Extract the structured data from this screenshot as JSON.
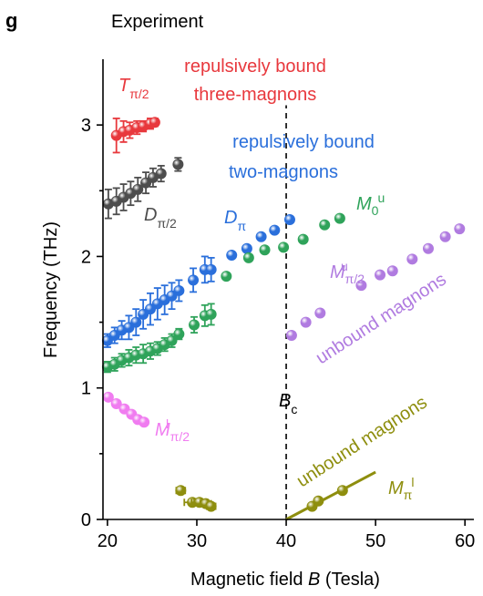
{
  "panel": {
    "letter": "g",
    "title": "Experiment"
  },
  "chart_data": {
    "type": "scatter",
    "xlabel": "Magnetic field B (Tesla)",
    "ylabel": "Frequency (THz)",
    "xlim": [
      19.5,
      61
    ],
    "ylim": [
      0,
      3.5
    ],
    "xticks": [
      20,
      30,
      40,
      50,
      60
    ],
    "yticks": [
      0,
      1,
      2,
      3
    ],
    "grid": false,
    "colors": {
      "T": "#e8383d",
      "D_pi2": "#4d4d4d",
      "D_pi": "#2a6fdb",
      "M0u": "#2fa35a",
      "Mpi2u": "#b07be0",
      "Mpi2l": "#f07cf0",
      "Mpil": "#8e8e0e",
      "annotation_T": "#e8383d",
      "annotation_D": "#2a6fdb"
    },
    "series": [
      {
        "key": "T",
        "color": "#e8383d",
        "x": [
          21.0,
          21.8,
          22.5,
          23.3,
          24.0,
          24.8,
          25.3
        ],
        "y": [
          2.92,
          2.95,
          2.96,
          2.98,
          2.99,
          3.01,
          3.02
        ],
        "err": [
          0.13,
          0.08,
          0.06,
          0.05,
          0.04,
          0.04,
          0.03
        ]
      },
      {
        "key": "D_pi2",
        "color": "#4d4d4d",
        "x": [
          20.1,
          21.0,
          21.8,
          22.6,
          23.4,
          24.3,
          25.1,
          26.0,
          27.9
        ],
        "y": [
          2.4,
          2.42,
          2.45,
          2.48,
          2.51,
          2.56,
          2.6,
          2.63,
          2.7
        ],
        "err": [
          0.11,
          0.1,
          0.1,
          0.09,
          0.09,
          0.08,
          0.07,
          0.06,
          0.05
        ]
      },
      {
        "key": "D_pi",
        "color": "#2a6fdb",
        "x": [
          20.0,
          20.8,
          21.6,
          22.4,
          23.2,
          24.0,
          24.8,
          25.6,
          26.4,
          27.2,
          28.0,
          29.6,
          30.9,
          31.6,
          33.9,
          35.6,
          37.2,
          38.7,
          40.4
        ],
        "y": [
          1.36,
          1.4,
          1.44,
          1.46,
          1.5,
          1.56,
          1.6,
          1.64,
          1.67,
          1.7,
          1.74,
          1.82,
          1.9,
          1.9,
          2.01,
          2.06,
          2.15,
          2.2,
          2.28
        ],
        "err": [
          0.05,
          0.06,
          0.07,
          0.09,
          0.1,
          0.11,
          0.12,
          0.12,
          0.11,
          0.1,
          0.08,
          0.09,
          0.1,
          0.09,
          0,
          0,
          0,
          0,
          0
        ]
      },
      {
        "key": "M0u",
        "color": "#2fa35a",
        "x": [
          20.0,
          20.8,
          21.6,
          22.4,
          23.2,
          24.0,
          24.8,
          25.6,
          26.4,
          27.2,
          28.0,
          29.7,
          30.9,
          31.6,
          33.3,
          35.8,
          37.6,
          39.7,
          41.9,
          44.3,
          46.0
        ],
        "y": [
          1.16,
          1.18,
          1.21,
          1.23,
          1.25,
          1.26,
          1.28,
          1.3,
          1.33,
          1.36,
          1.41,
          1.48,
          1.55,
          1.56,
          1.85,
          1.99,
          2.05,
          2.07,
          2.13,
          2.24,
          2.29
        ],
        "err": [
          0.04,
          0.05,
          0.05,
          0.06,
          0.06,
          0.07,
          0.06,
          0.05,
          0.05,
          0.05,
          0.04,
          0.06,
          0.08,
          0.08,
          0,
          0,
          0,
          0,
          0,
          0,
          0
        ]
      },
      {
        "key": "Mpi2u",
        "color": "#b07be0",
        "x": [
          40.6,
          42.2,
          43.8,
          48.4,
          50.5,
          51.9,
          54.1,
          55.9,
          57.8,
          59.4
        ],
        "y": [
          1.4,
          1.5,
          1.57,
          1.78,
          1.86,
          1.89,
          1.98,
          2.06,
          2.15,
          2.21
        ],
        "err": [
          0,
          0,
          0,
          0,
          0,
          0,
          0,
          0,
          0,
          0
        ]
      },
      {
        "key": "Mpi2l",
        "color": "#f07cf0",
        "x": [
          20.1,
          21.0,
          21.9,
          22.7,
          23.4,
          24.1
        ],
        "y": [
          0.93,
          0.88,
          0.84,
          0.8,
          0.76,
          0.74
        ],
        "err": [
          0.02,
          0.02,
          0.02,
          0.02,
          0.02,
          0.02
        ]
      },
      {
        "key": "Mpil",
        "color": "#8e8e0e",
        "x": [
          28.2,
          29.5,
          30.3,
          31.0,
          31.6,
          42.9,
          43.6,
          46.3
        ],
        "y": [
          0.22,
          0.13,
          0.13,
          0.12,
          0.1,
          0.1,
          0.14,
          0.22
        ],
        "err": [
          0,
          0,
          0,
          0,
          0,
          0,
          0,
          0
        ],
        "xerr": [
          0.5,
          0.9,
          0.9,
          0.6,
          0.5,
          0,
          0,
          0
        ]
      }
    ],
    "lines": [
      {
        "key": "Bc-line",
        "color": "#000000",
        "dashed": true,
        "x": [
          40,
          40
        ],
        "y": [
          0,
          3.15
        ]
      },
      {
        "key": "Mpil-fit",
        "color": "#8e8e0e",
        "dashed": false,
        "x": [
          40,
          50
        ],
        "y": [
          0,
          0.36
        ]
      }
    ],
    "annotations": {
      "T_label": "T",
      "T_sub": "π/2",
      "rep3_line1": "repulsively bound",
      "rep3_line2": "three-magnons",
      "rep2_line1": "repulsively bound",
      "rep2_line2": "two-magnons",
      "Dpi2_label": "D",
      "Dpi2_sub": "π/2",
      "Dpi_label": "D",
      "Dpi_sub": "π",
      "M0u_label": "M",
      "M0u_sub": "0",
      "M0u_sup": "u",
      "Mpi2u_label": "M",
      "Mpi2u_sub": "π/2",
      "Mpi2u_sup": "u",
      "unbound_upper": "unbound magnons",
      "Bc_label": "B",
      "Bc_sub": "c",
      "Mpi2l_label": "M",
      "Mpi2l_sub": "π/2",
      "Mpi2l_sup": "l",
      "unbound_lower": "unbound magnons",
      "Mpil_label": "M",
      "Mpil_sub": "π",
      "Mpil_sup": "l"
    }
  }
}
